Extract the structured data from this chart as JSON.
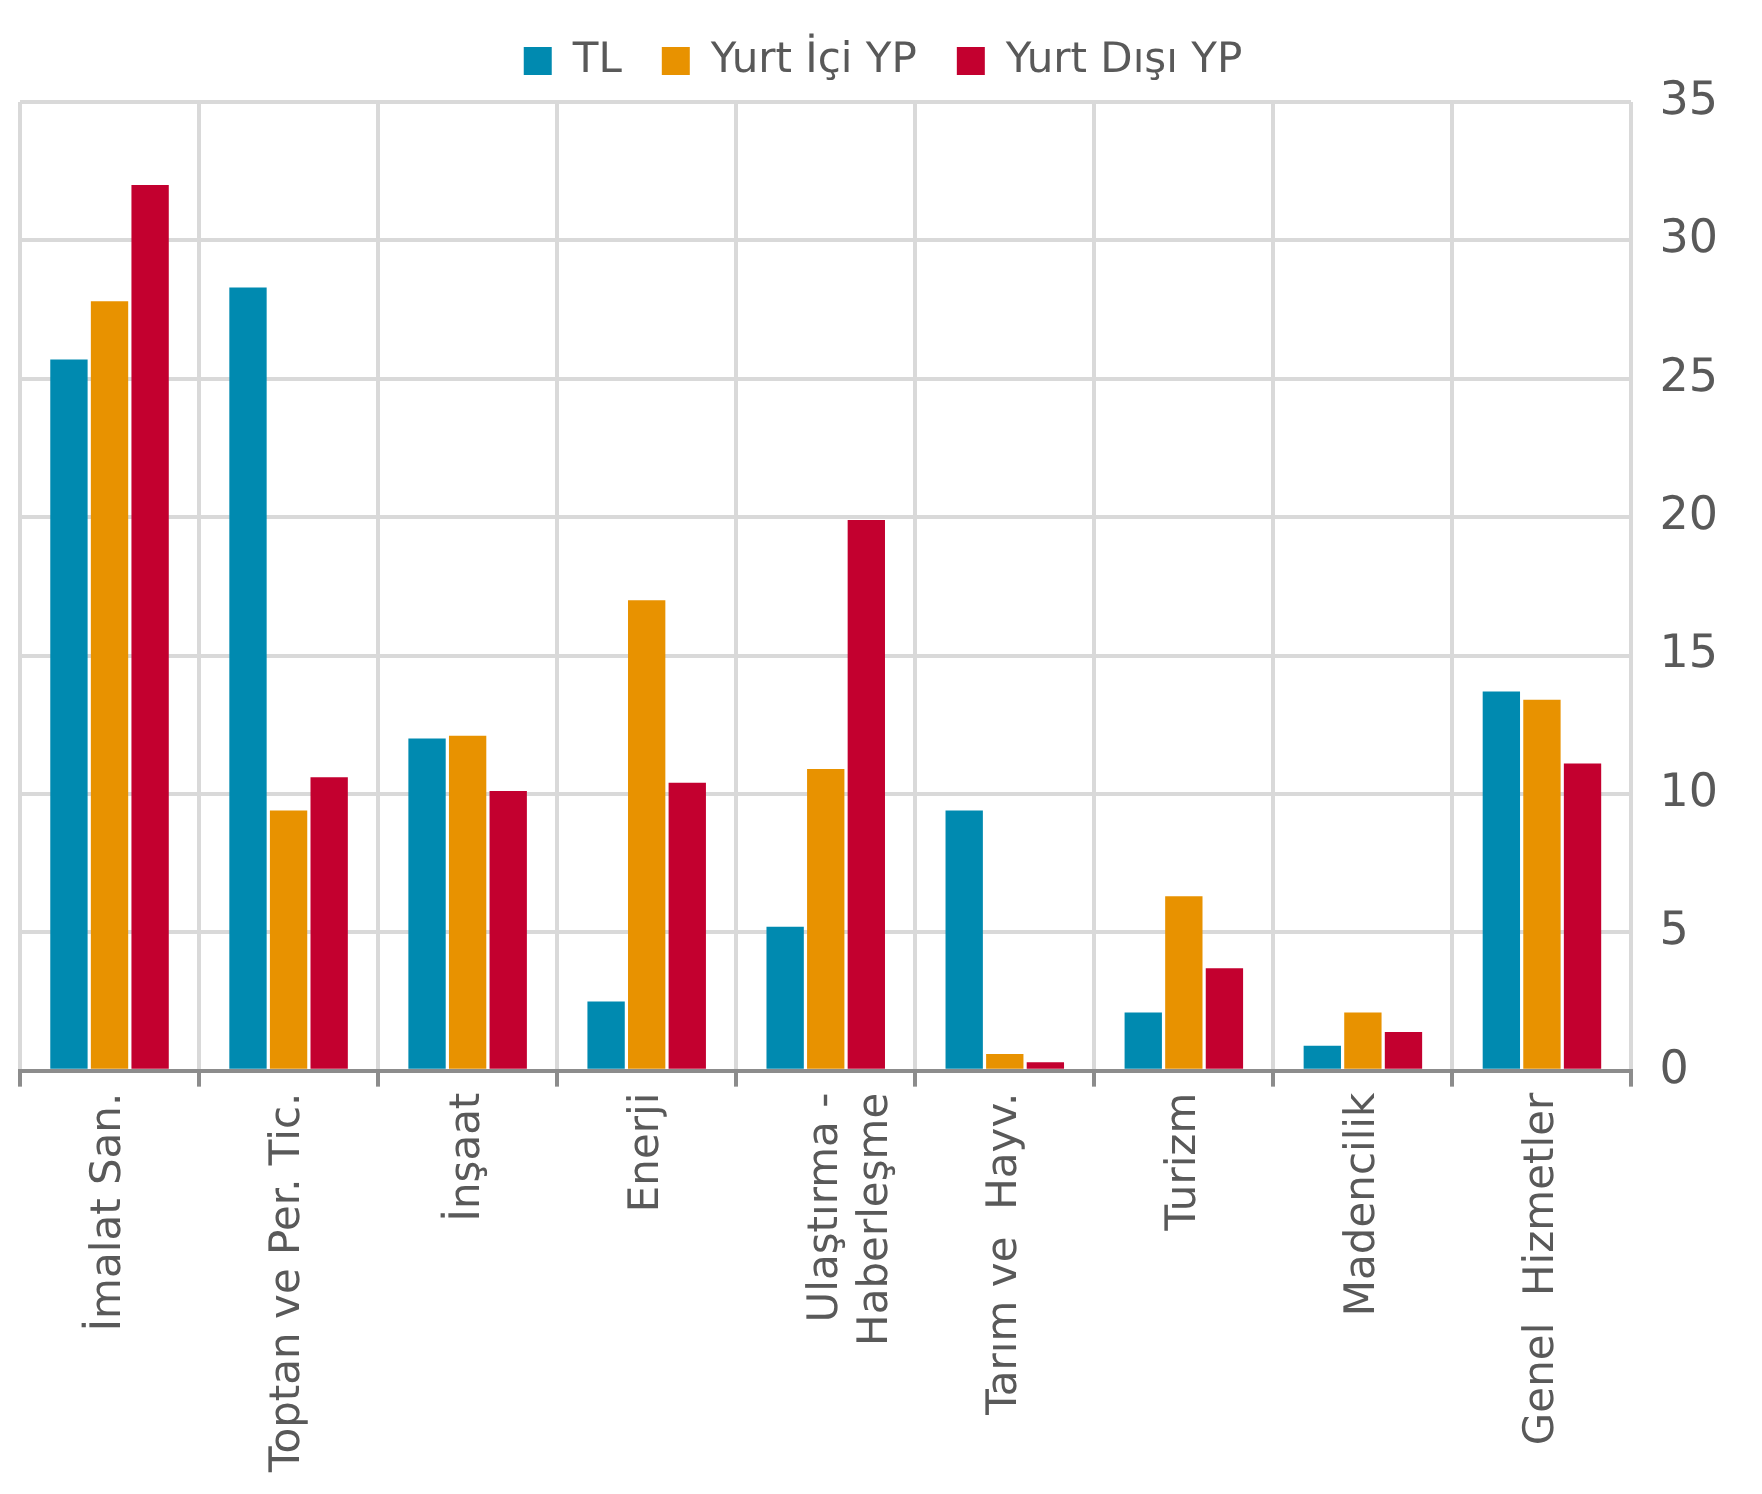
{
  "chart_data": {
    "type": "bar",
    "categories": [
      "İmalat San.",
      "Toptan ve Per. Tic.",
      "İnşaat",
      "Enerji",
      "Ulaştırma -\nHaberleşme",
      "Tarım ve  Hayv.",
      "Turizm",
      "Madencilik",
      "Genel  Hizmetler"
    ],
    "series": [
      {
        "name": "TL",
        "color": "#008ab0",
        "values": [
          25.7,
          28.3,
          12.0,
          2.5,
          5.2,
          9.4,
          2.1,
          0.9,
          13.7
        ]
      },
      {
        "name": "Yurt İçi YP",
        "color": "#e89200",
        "values": [
          27.8,
          9.4,
          12.1,
          17.0,
          10.9,
          0.6,
          6.3,
          2.1,
          13.4
        ]
      },
      {
        "name": "Yurt Dışı YP",
        "color": "#c3002f",
        "values": [
          32.0,
          10.6,
          10.1,
          10.4,
          19.9,
          0.3,
          3.7,
          1.4,
          11.1
        ]
      }
    ],
    "ylim": [
      0,
      35
    ],
    "yticks": [
      0,
      5,
      10,
      15,
      20,
      25,
      30,
      35
    ],
    "grid": true,
    "legend": "top"
  }
}
